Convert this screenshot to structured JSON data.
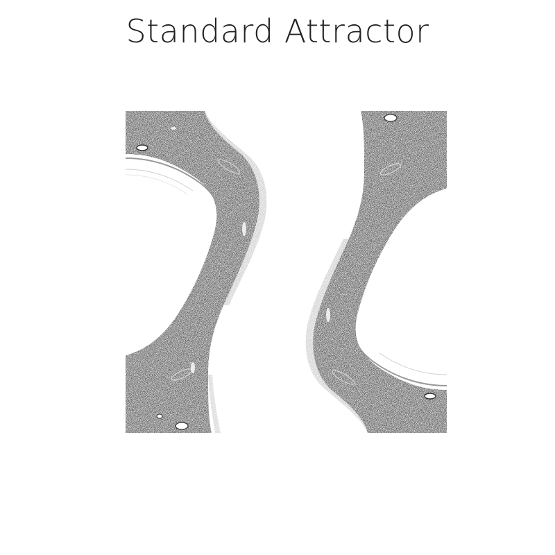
{
  "title": "Standard Attractor",
  "colors": {
    "background": "#ffffff",
    "ink": "#555555",
    "dark": "#3c3c3c",
    "band_light": "#9a9a9a"
  },
  "image": {
    "subject": "standard-map-chaotic-attractor",
    "bands": [
      "left-chaotic-band",
      "right-chaotic-band"
    ]
  }
}
